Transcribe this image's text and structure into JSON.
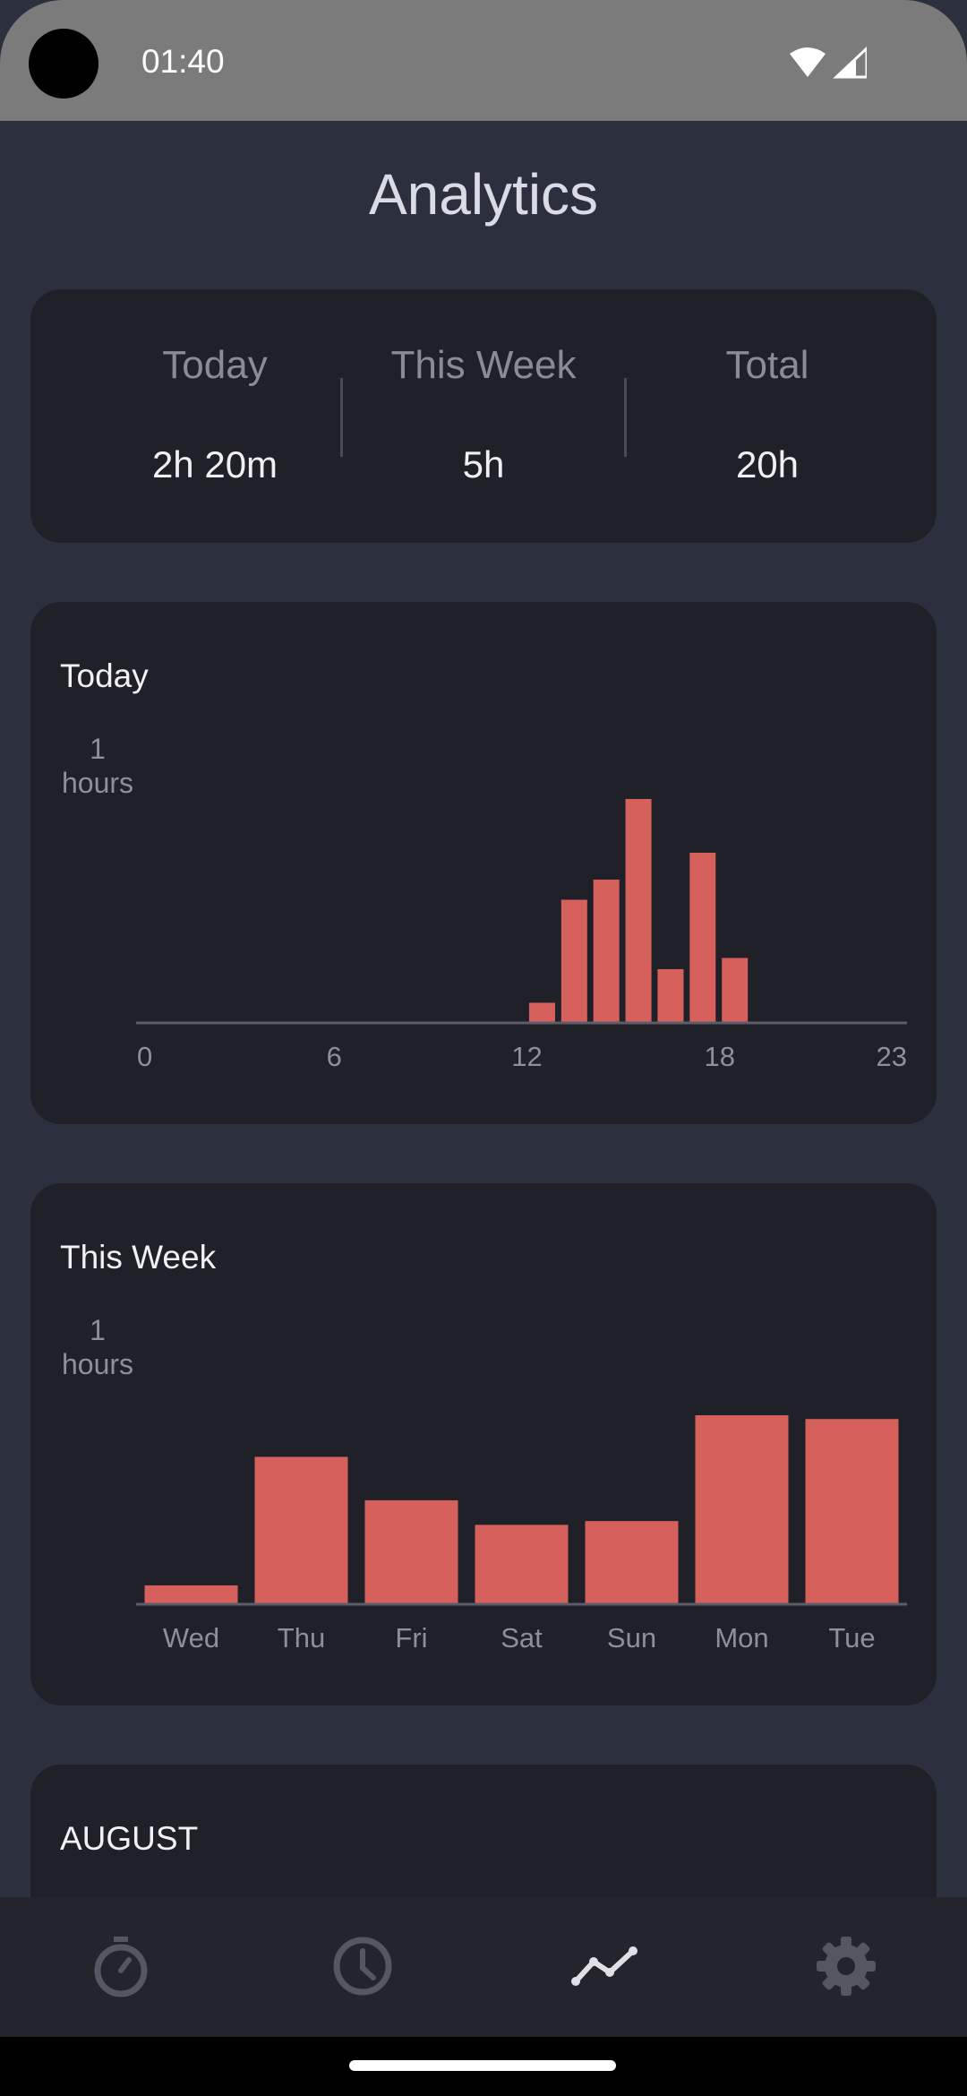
{
  "status": {
    "time": "01:40"
  },
  "page_title": "Analytics",
  "summary": {
    "today_label": "Today",
    "today_value": "2h 20m",
    "week_label": "This Week",
    "week_value": "5h",
    "total_label": "Total",
    "total_value": "20h"
  },
  "today_chart": {
    "title": "Today",
    "y_unit_value": "1",
    "y_unit_label": "hours",
    "x_ticks": [
      "0",
      "6",
      "12",
      "18",
      "23"
    ]
  },
  "week_chart": {
    "title": "This Week",
    "y_unit_value": "1",
    "y_unit_label": "hours"
  },
  "month_card": {
    "title": "AUGUST"
  },
  "nav": [
    {
      "icon": "stopwatch-icon",
      "active": false
    },
    {
      "icon": "clock-icon",
      "active": false
    },
    {
      "icon": "analytics-icon",
      "active": true
    },
    {
      "icon": "gear-icon",
      "active": false
    }
  ],
  "colors": {
    "bar": "#d6605b",
    "background": "#2c2f3e",
    "card": "#202029",
    "axis": "#5c5d68"
  },
  "chart_data": [
    {
      "type": "bar",
      "title": "Today",
      "ylabel": "hours",
      "x": [
        0,
        1,
        2,
        3,
        4,
        5,
        6,
        7,
        8,
        9,
        10,
        11,
        12,
        13,
        14,
        15,
        16,
        17,
        18,
        19,
        20,
        21,
        22,
        23
      ],
      "values": [
        0,
        0,
        0,
        0,
        0,
        0,
        0,
        0,
        0,
        0,
        0,
        0,
        0.09,
        0.55,
        0.64,
        1.0,
        0.24,
        0.76,
        0.29,
        0,
        0,
        0,
        0,
        0
      ],
      "xticks": [
        "0",
        "6",
        "12",
        "18",
        "23"
      ],
      "ylim": [
        0,
        1
      ]
    },
    {
      "type": "bar",
      "title": "This Week",
      "ylabel": "hours",
      "categories": [
        "Wed",
        "Thu",
        "Fri",
        "Sat",
        "Sun",
        "Mon",
        "Tue"
      ],
      "values": [
        0.1,
        0.78,
        0.55,
        0.42,
        0.44,
        1.0,
        0.98
      ],
      "ylim": [
        0,
        1
      ]
    }
  ]
}
